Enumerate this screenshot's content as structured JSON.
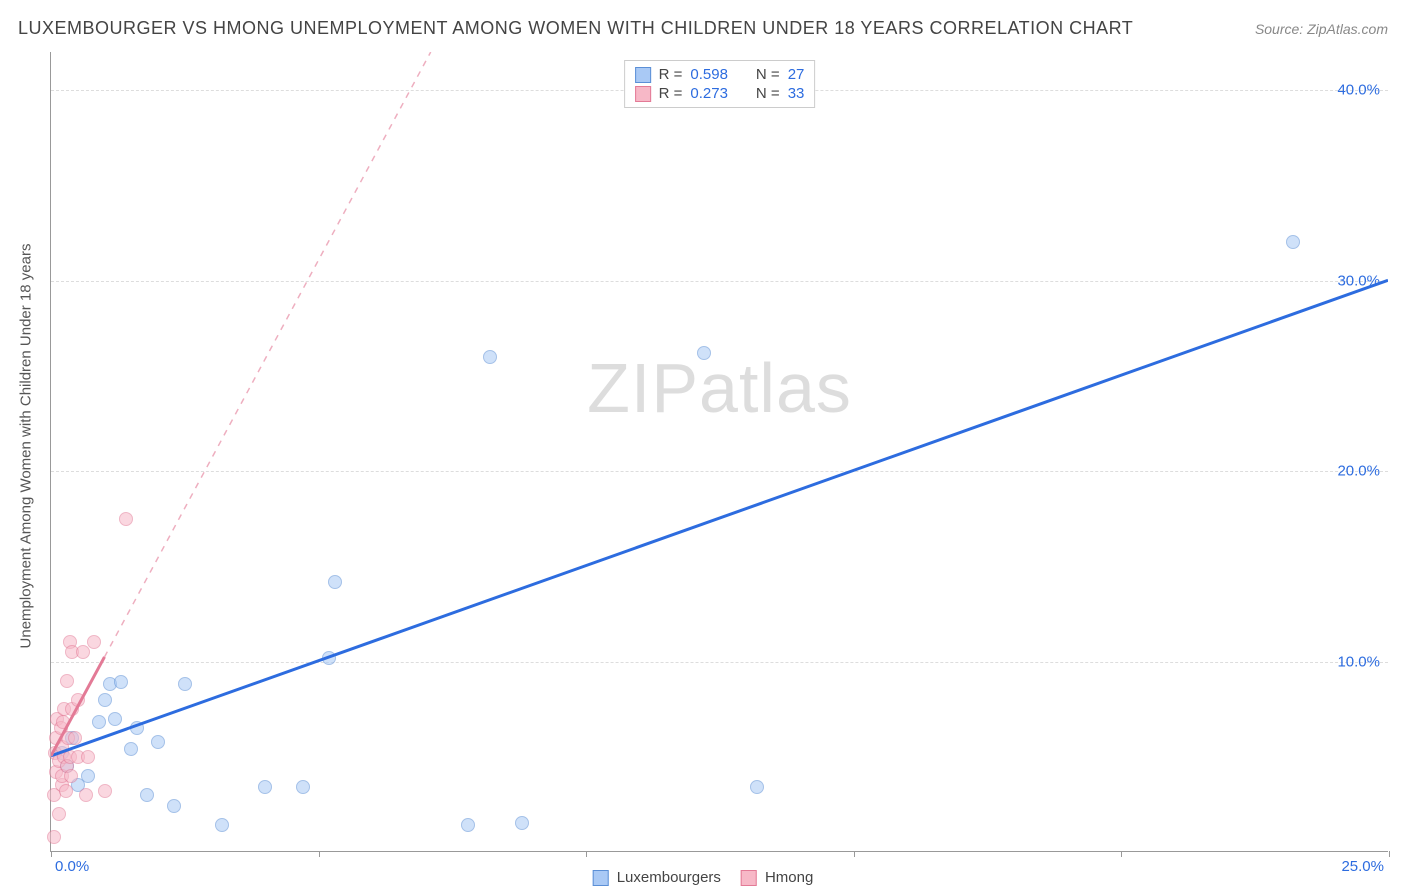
{
  "title": "LUXEMBOURGER VS HMONG UNEMPLOYMENT AMONG WOMEN WITH CHILDREN UNDER 18 YEARS CORRELATION CHART",
  "source": "Source: ZipAtlas.com",
  "yaxis_label": "Unemployment Among Women with Children Under 18 years",
  "watermark_a": "ZIP",
  "watermark_b": "atlas",
  "chart": {
    "type": "scatter",
    "xlim": [
      0,
      25
    ],
    "ylim": [
      0,
      42
    ],
    "x_ticks": [
      0,
      5,
      10,
      15,
      20,
      25
    ],
    "y_ticks": [
      10,
      20,
      30,
      40
    ],
    "x_tick_labels": {
      "0": "0.0%",
      "25": "25.0%"
    },
    "y_tick_labels": {
      "10": "10.0%",
      "20": "20.0%",
      "30": "30.0%",
      "40": "40.0%"
    },
    "grid_color": "#dddddd",
    "axis_color": "#999999",
    "tick_label_color": "#2d6cdf",
    "background": "#ffffff",
    "series": [
      {
        "name": "Luxembourgers",
        "legend_label": "Luxembourgers",
        "marker_fill": "#a9c9f5",
        "marker_stroke": "#5b8fd6",
        "marker_fill_opacity": 0.55,
        "marker_size": 14,
        "trend_color": "#2d6cdf",
        "trend_width": 3,
        "trend_dash": "none",
        "trend_from": [
          0,
          5.0
        ],
        "trend_to": [
          25,
          30.0
        ],
        "R": 0.598,
        "N": 27,
        "points": [
          [
            0.2,
            5.2
          ],
          [
            0.3,
            4.5
          ],
          [
            0.4,
            6.0
          ],
          [
            0.5,
            3.5
          ],
          [
            0.7,
            4.0
          ],
          [
            0.9,
            6.8
          ],
          [
            1.0,
            8.0
          ],
          [
            1.1,
            8.8
          ],
          [
            1.2,
            7.0
          ],
          [
            1.3,
            8.9
          ],
          [
            1.5,
            5.4
          ],
          [
            1.6,
            6.5
          ],
          [
            1.8,
            3.0
          ],
          [
            2.0,
            5.8
          ],
          [
            2.3,
            2.4
          ],
          [
            2.5,
            8.8
          ],
          [
            3.2,
            1.4
          ],
          [
            4.0,
            3.4
          ],
          [
            4.7,
            3.4
          ],
          [
            5.2,
            10.2
          ],
          [
            5.3,
            14.2
          ],
          [
            7.8,
            1.4
          ],
          [
            8.8,
            1.5
          ],
          [
            8.2,
            26.0
          ],
          [
            12.2,
            26.2
          ],
          [
            13.2,
            3.4
          ],
          [
            23.2,
            32.0
          ]
        ]
      },
      {
        "name": "Hmong",
        "legend_label": "Hmong",
        "marker_fill": "#f7b8c7",
        "marker_stroke": "#e37a96",
        "marker_fill_opacity": 0.55,
        "marker_size": 14,
        "trend_color": "#e37a96",
        "trend_width": 3,
        "trend_dash": "dashed",
        "trend_from": [
          0,
          5.0
        ],
        "trend_to": [
          7.1,
          42.0
        ],
        "solid_to": [
          1.0,
          10.2
        ],
        "R": 0.273,
        "N": 33,
        "points": [
          [
            0.05,
            0.8
          ],
          [
            0.05,
            3.0
          ],
          [
            0.08,
            5.2
          ],
          [
            0.1,
            4.2
          ],
          [
            0.1,
            6.0
          ],
          [
            0.12,
            7.0
          ],
          [
            0.15,
            2.0
          ],
          [
            0.15,
            4.8
          ],
          [
            0.18,
            6.5
          ],
          [
            0.2,
            3.5
          ],
          [
            0.2,
            4.0
          ],
          [
            0.2,
            5.5
          ],
          [
            0.22,
            6.8
          ],
          [
            0.25,
            5.0
          ],
          [
            0.25,
            7.5
          ],
          [
            0.28,
            3.2
          ],
          [
            0.3,
            4.5
          ],
          [
            0.3,
            9.0
          ],
          [
            0.32,
            6.0
          ],
          [
            0.35,
            5.0
          ],
          [
            0.35,
            11.0
          ],
          [
            0.38,
            4.0
          ],
          [
            0.4,
            7.5
          ],
          [
            0.4,
            10.5
          ],
          [
            0.45,
            6.0
          ],
          [
            0.5,
            5.0
          ],
          [
            0.5,
            8.0
          ],
          [
            0.6,
            10.5
          ],
          [
            0.65,
            3.0
          ],
          [
            0.7,
            5.0
          ],
          [
            0.8,
            11.0
          ],
          [
            1.0,
            3.2
          ],
          [
            1.4,
            17.5
          ]
        ]
      }
    ]
  },
  "legend_top": {
    "label_R": "R =",
    "label_N": "N =",
    "text_color": "#444444",
    "value_color": "#2d6cdf"
  }
}
